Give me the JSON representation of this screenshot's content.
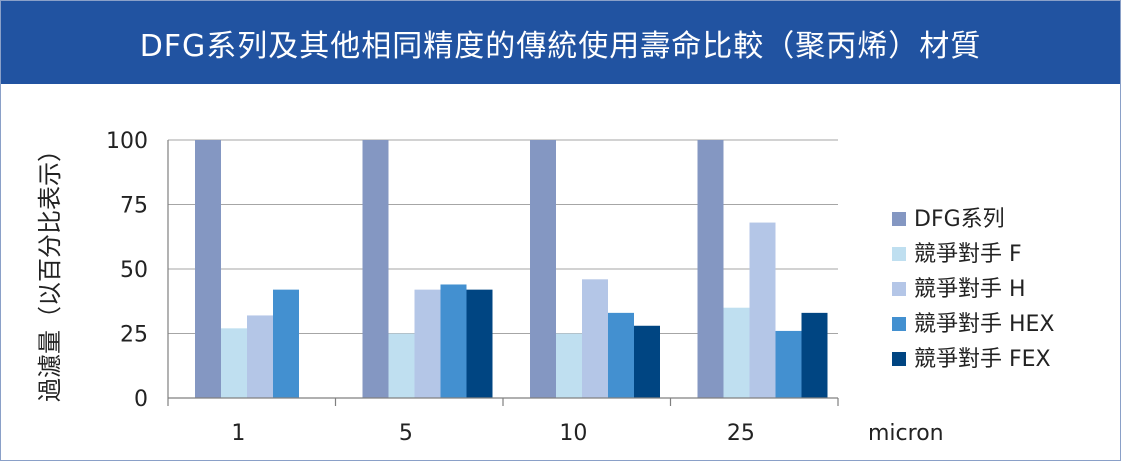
{
  "title": "DFG系列及其他相同精度的傳統使用壽命比較（聚丙烯）材質",
  "chart_data": {
    "type": "bar",
    "title": "DFG系列及其他相同精度的傳統使用壽命比較（聚丙烯）材質",
    "xlabel": "micron",
    "ylabel": "過濾量（以百分比表示）",
    "categories": [
      "1",
      "5",
      "10",
      "25"
    ],
    "ylim": [
      0,
      100
    ],
    "yticks": [
      "0",
      "25",
      "50",
      "75",
      "100"
    ],
    "grid": true,
    "legend_position": "right",
    "series": [
      {
        "name": "DFG系列",
        "color": "#8497c2",
        "values": [
          100,
          100,
          100,
          100
        ]
      },
      {
        "name": "競爭對手 F",
        "color": "#bfdff0",
        "values": [
          27,
          25,
          25,
          35
        ]
      },
      {
        "name": "競爭對手 H",
        "color": "#b4c6e7",
        "values": [
          32,
          42,
          46,
          68
        ]
      },
      {
        "name": "競爭對手 HEX",
        "color": "#4390d0",
        "values": [
          42,
          44,
          33,
          26
        ]
      },
      {
        "name": "競爭對手 FEX",
        "color": "#004582",
        "values": [
          null,
          42,
          28,
          33
        ]
      }
    ]
  }
}
